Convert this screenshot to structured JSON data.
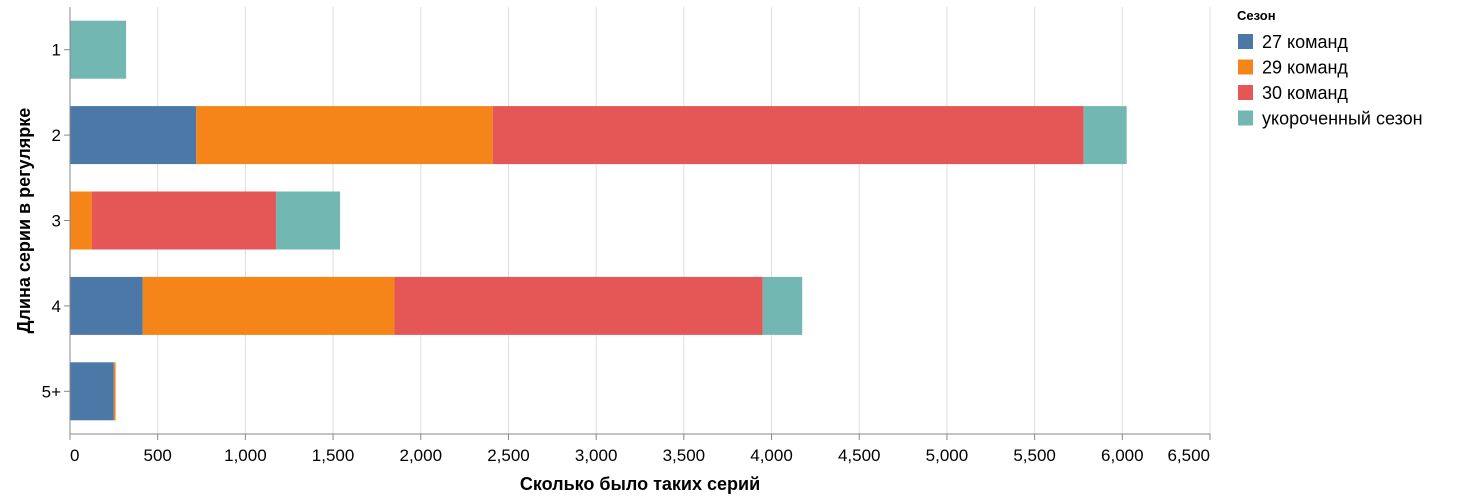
{
  "chart_data": {
    "type": "bar",
    "orientation": "horizontal",
    "stacked": true,
    "title": "",
    "xlabel": "Сколько было таких серий",
    "ylabel": "Длина серии в регулярке",
    "xlim": [
      0,
      6500
    ],
    "x_ticks": [
      0,
      500,
      1000,
      1500,
      2000,
      2500,
      3000,
      3500,
      4000,
      4500,
      5000,
      5500,
      6000,
      6500
    ],
    "x_tick_labels": [
      "0",
      "500",
      "1,000",
      "1,500",
      "2,000",
      "2,500",
      "3,000",
      "3,500",
      "4,000",
      "4,500",
      "5,000",
      "5,500",
      "6,000",
      "6,500"
    ],
    "grid": true,
    "categories": [
      "1",
      "2",
      "3",
      "4",
      "5+"
    ],
    "legend": {
      "title": "Сезон",
      "position": "top-right"
    },
    "series": [
      {
        "name": "27 команд",
        "color": "#4c78a8",
        "values": [
          0,
          720,
          0,
          415,
          250
        ]
      },
      {
        "name": "29 команд",
        "color": "#f58518",
        "values": [
          0,
          1690,
          125,
          1435,
          10
        ]
      },
      {
        "name": "30 команд",
        "color": "#e45756",
        "values": [
          0,
          3370,
          1050,
          2100,
          0
        ]
      },
      {
        "name": "укороченный сезон",
        "color": "#72b7b2",
        "values": [
          320,
          245,
          365,
          225,
          0
        ]
      }
    ]
  }
}
